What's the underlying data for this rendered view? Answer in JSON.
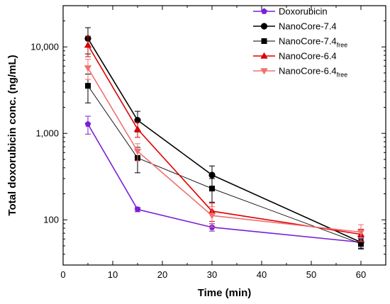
{
  "chart_data": {
    "type": "line",
    "xlabel": "Time (min)",
    "ylabel": "Total doxorubicin conc. (ng/mL)",
    "xlim": [
      0,
      65
    ],
    "ylim": [
      30,
      30000
    ],
    "yscale": "log",
    "xticks": [
      0,
      10,
      20,
      30,
      40,
      50,
      60
    ],
    "yticks": [
      100,
      1000,
      10000
    ],
    "ytick_labels": [
      "100",
      "1,000",
      "10,000"
    ],
    "grid": false,
    "legend_position": "top-right",
    "x": [
      5,
      15,
      30,
      60
    ],
    "series": [
      {
        "name": "Doxorubicin",
        "sub": "",
        "color": "#7a1fd6",
        "marker": "pentagon",
        "lw": 1.6,
        "values": [
          1280,
          132,
          82,
          55
        ],
        "err": [
          300,
          8,
          8,
          6
        ]
      },
      {
        "name": "NanoCore-7.4",
        "sub": "",
        "color": "#000000",
        "marker": "circle",
        "lw": 1.6,
        "values": [
          12500,
          1420,
          330,
          55
        ],
        "err": [
          4200,
          380,
          90,
          8
        ]
      },
      {
        "name": "NanoCore-7.4",
        "sub": "free",
        "color": "#000000",
        "marker": "square",
        "lw": 0.9,
        "values": [
          3550,
          520,
          230,
          53
        ],
        "err": [
          1300,
          170,
          70,
          7
        ]
      },
      {
        "name": "NanoCore-6.4",
        "sub": "",
        "color": "#dd0000",
        "marker": "triangle-up",
        "lw": 1.6,
        "values": [
          10500,
          1120,
          126,
          68
        ],
        "err": [
          2800,
          220,
          30,
          10
        ]
      },
      {
        "name": "NanoCore-6.4",
        "sub": "free",
        "color": "#f07070",
        "marker": "triangle-down",
        "lw": 1.6,
        "values": [
          5700,
          620,
          112,
          72
        ],
        "err": [
          1500,
          140,
          30,
          16
        ]
      }
    ]
  }
}
